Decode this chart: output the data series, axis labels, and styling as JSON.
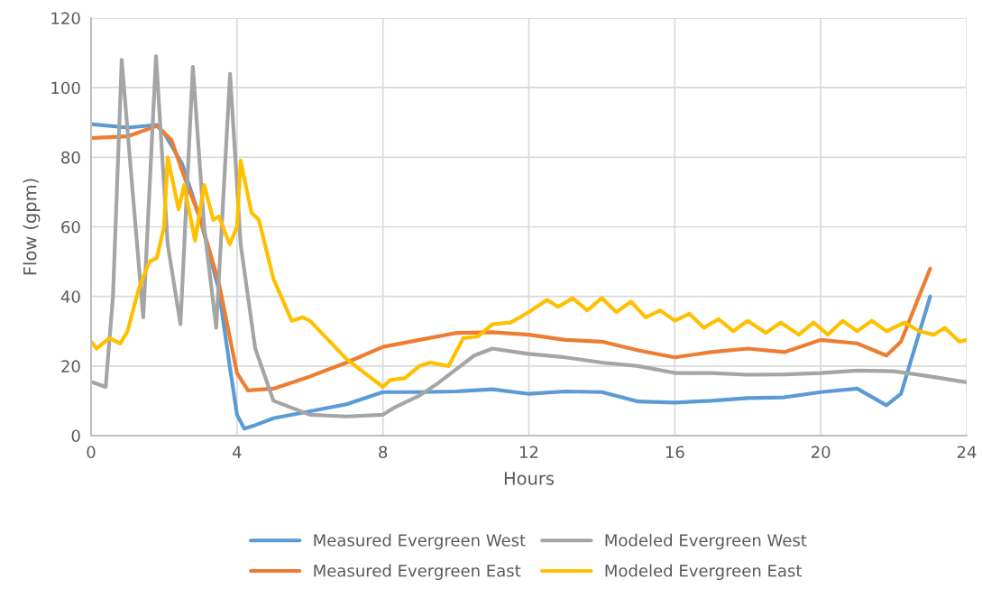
{
  "chart_data": {
    "type": "line",
    "xlabel": "Hours",
    "ylabel": "Flow (gpm)",
    "xlim": [
      0,
      24
    ],
    "xticks": [
      0,
      4,
      8,
      12,
      16,
      20,
      24
    ],
    "ylim": [
      0,
      120
    ],
    "yticks": [
      0,
      20,
      40,
      60,
      80,
      100,
      120
    ],
    "grid": true,
    "legend": "bottom",
    "marker": "none",
    "line_style": "solid",
    "series": [
      {
        "name": "Measured Evergreen West",
        "color": "#5b9bd5",
        "x": [
          0,
          1,
          1.8,
          2,
          2.5,
          3,
          3.5,
          3.8,
          4,
          4.2,
          4.5,
          5,
          6,
          7,
          8,
          9,
          10,
          11,
          12,
          13,
          14,
          15,
          16,
          17,
          18,
          19,
          20,
          21,
          21.8,
          22.2,
          23
        ],
        "values": [
          89.5,
          88.5,
          89.3,
          87,
          78,
          62,
          42,
          20,
          6,
          2,
          3,
          5,
          7,
          9,
          12.5,
          12.5,
          12.7,
          13.3,
          12,
          12.7,
          12.5,
          9.8,
          9.5,
          10,
          10.8,
          11,
          12.5,
          13.5,
          8.7,
          12,
          40
        ]
      },
      {
        "name": "Measured Evergreen East",
        "color": "#ed7d31",
        "x": [
          0,
          1,
          1.8,
          2.2,
          2.5,
          3,
          3.5,
          4,
          4.3,
          5,
          6,
          7,
          8,
          9,
          10,
          11,
          12,
          13,
          14,
          15,
          16,
          17,
          18,
          19,
          20,
          21,
          21.8,
          22.2,
          23
        ],
        "values": [
          85.5,
          86,
          89,
          85,
          76,
          62,
          44,
          18,
          13,
          13.5,
          17,
          21,
          25.5,
          27.5,
          29.5,
          29.7,
          29,
          27.5,
          27,
          24.5,
          22.5,
          24,
          25,
          24,
          27.5,
          26.5,
          23,
          27,
          48
        ]
      },
      {
        "name": "Modeled Evergreen West",
        "color": "#a5a5a5",
        "x": [
          0,
          0.4,
          0.6,
          0.84,
          1.1,
          1.43,
          1.78,
          2.1,
          2.45,
          2.79,
          3.1,
          3.43,
          3.81,
          4.1,
          4.5,
          5,
          6,
          7,
          8,
          8.3,
          9,
          9.5,
          10,
          10.5,
          11,
          12,
          13,
          14,
          15,
          16,
          17,
          18,
          19,
          20,
          21,
          22,
          23,
          24
        ],
        "values": [
          15.5,
          14,
          40,
          108,
          75,
          34,
          109,
          55,
          32,
          106,
          60,
          31,
          104,
          55,
          25,
          10,
          6,
          5.5,
          6,
          8,
          11.5,
          15,
          19,
          23,
          25,
          23.5,
          22.5,
          21,
          20,
          18,
          18,
          17.5,
          17.6,
          18,
          18.7,
          18.5,
          17,
          15.3
        ]
      },
      {
        "name": "Modeled Evergreen East",
        "color": "#ffc000",
        "x": [
          0,
          0.15,
          0.5,
          0.8,
          1,
          1.3,
          1.6,
          1.8,
          2,
          2.1,
          2.4,
          2.55,
          2.85,
          3.1,
          3.35,
          3.5,
          3.8,
          4,
          4.1,
          4.4,
          4.6,
          5,
          5.5,
          5.8,
          6,
          7,
          8,
          8.2,
          8.6,
          9,
          9.3,
          9.8,
          10.2,
          10.6,
          11,
          11.5,
          12,
          12.5,
          12.8,
          13.2,
          13.6,
          14,
          14.4,
          14.8,
          15.2,
          15.6,
          16,
          16.4,
          16.8,
          17.2,
          17.6,
          18,
          18.5,
          18.9,
          19.4,
          19.8,
          20.2,
          20.6,
          21,
          21.4,
          21.8,
          22.3,
          22.7,
          23.1,
          23.4,
          23.8,
          24
        ],
        "values": [
          27,
          25,
          28,
          26.5,
          30,
          42,
          50,
          51,
          60,
          80,
          65,
          72,
          56,
          72,
          62,
          63,
          55,
          60,
          79,
          64,
          62,
          45,
          33,
          34,
          33,
          22,
          14,
          16,
          16.5,
          20,
          21,
          20,
          28,
          28.5,
          32,
          32.5,
          35.5,
          39,
          37,
          39.5,
          36,
          39.5,
          35.5,
          38.5,
          34,
          36,
          33,
          35,
          31,
          33.5,
          30,
          33,
          29.5,
          32.5,
          29,
          32.5,
          29,
          33,
          30,
          33,
          30,
          32.5,
          30,
          29,
          31,
          27,
          27.5
        ]
      }
    ]
  }
}
